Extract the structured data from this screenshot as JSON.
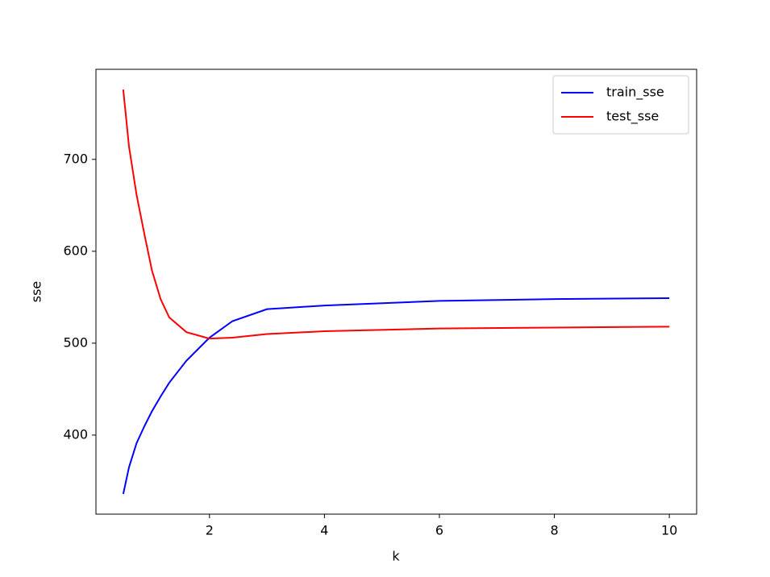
{
  "chart_data": {
    "type": "line",
    "x_label": "k",
    "y_label": "sse",
    "x": [
      0.5,
      0.6,
      0.73,
      0.87,
      1.0,
      1.15,
      1.3,
      1.6,
      2,
      2.4,
      3,
      4,
      6,
      8,
      10
    ],
    "series": [
      {
        "name": "train_sse",
        "color": "#0000ff",
        "values": [
          336,
          365,
          391,
          410,
          426,
          442,
          457,
          481,
          506,
          524,
          537,
          541,
          546,
          548,
          549
        ]
      },
      {
        "name": "test_sse",
        "color": "#ff0000",
        "values": [
          776,
          714,
          662,
          618,
          579,
          548,
          528,
          512,
          505,
          506,
          510,
          513,
          516,
          517,
          518
        ]
      }
    ],
    "xlim": [
      0.025,
      10.475
    ],
    "xticks": [
      2,
      4,
      6,
      8,
      10
    ],
    "ylim": [
      314,
      798
    ],
    "yticks": [
      400,
      500,
      600,
      700
    ],
    "legend": "upper right"
  }
}
